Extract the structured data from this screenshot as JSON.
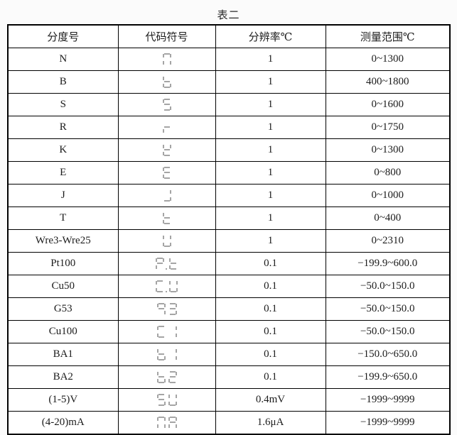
{
  "page": {
    "title": "表二"
  },
  "table": {
    "headers": [
      "分度号",
      "代码符号",
      "分辨率℃",
      "测量范围℃"
    ],
    "rows": [
      {
        "graduation": "N",
        "code_display": "n",
        "code_segments": [
          "abcef"
        ],
        "resolution": "1",
        "range": "0~1300"
      },
      {
        "graduation": "B",
        "code_display": "b",
        "code_segments": [
          "cdefg"
        ],
        "resolution": "1",
        "range": "400~1800"
      },
      {
        "graduation": "S",
        "code_display": "5",
        "code_segments": [
          "acdfg"
        ],
        "resolution": "1",
        "range": "0~1600"
      },
      {
        "graduation": "R",
        "code_display": "r",
        "code_segments": [
          "eg"
        ],
        "resolution": "1",
        "range": "0~1750"
      },
      {
        "graduation": "K",
        "code_display": "K",
        "code_segments": [
          "bdefg"
        ],
        "resolution": "1",
        "range": "0~1300"
      },
      {
        "graduation": "E",
        "code_display": "E",
        "code_segments": [
          "adefg"
        ],
        "resolution": "1",
        "range": "0~800"
      },
      {
        "graduation": "J",
        "code_display": "J",
        "code_segments": [
          "bcd"
        ],
        "resolution": "1",
        "range": "0~1000"
      },
      {
        "graduation": "T",
        "code_display": "t",
        "code_segments": [
          "defg"
        ],
        "resolution": "1",
        "range": "0~400"
      },
      {
        "graduation": "Wre3-Wre25",
        "code_display": "U",
        "code_segments": [
          "bcdef"
        ],
        "resolution": "1",
        "range": "0~2310"
      },
      {
        "graduation": "Pt100",
        "code_display": "P.t",
        "code_segments": [
          "abefg",
          ".",
          "defg"
        ],
        "resolution": "0.1",
        "range": "−199.9~600.0"
      },
      {
        "graduation": "Cu50",
        "code_display": "C.U",
        "code_segments": [
          "adef",
          ".",
          "bcdef"
        ],
        "resolution": "0.1",
        "range": "−50.0~150.0"
      },
      {
        "graduation": "G53",
        "code_display": "93",
        "code_segments": [
          "abcfg",
          "abcdg"
        ],
        "resolution": "0.1",
        "range": "−50.0~150.0"
      },
      {
        "graduation": "Cu100",
        "code_display": "C1",
        "code_segments": [
          "adef",
          "bc"
        ],
        "resolution": "0.1",
        "range": "−50.0~150.0"
      },
      {
        "graduation": "BA1",
        "code_display": "b1",
        "code_segments": [
          "cdefg",
          "bc"
        ],
        "resolution": "0.1",
        "range": "−150.0~650.0"
      },
      {
        "graduation": "BA2",
        "code_display": "b2",
        "code_segments": [
          "cdefg",
          "abdeg"
        ],
        "resolution": "0.1",
        "range": "−199.9~650.0"
      },
      {
        "graduation": "(1-5)V",
        "code_display": "5U",
        "code_segments": [
          "acdfg",
          "bcdef"
        ],
        "resolution": "0.4mV",
        "range": "−1999~9999"
      },
      {
        "graduation": "(4-20)mA",
        "code_display": "nA",
        "code_segments": [
          "abcef",
          "abcefg"
        ],
        "resolution": "1.6μA",
        "range": "−1999~9999"
      }
    ]
  },
  "colors": {
    "border": "#000000",
    "segment_gray": "#a5a5a5",
    "background": "#fbfbfb"
  }
}
